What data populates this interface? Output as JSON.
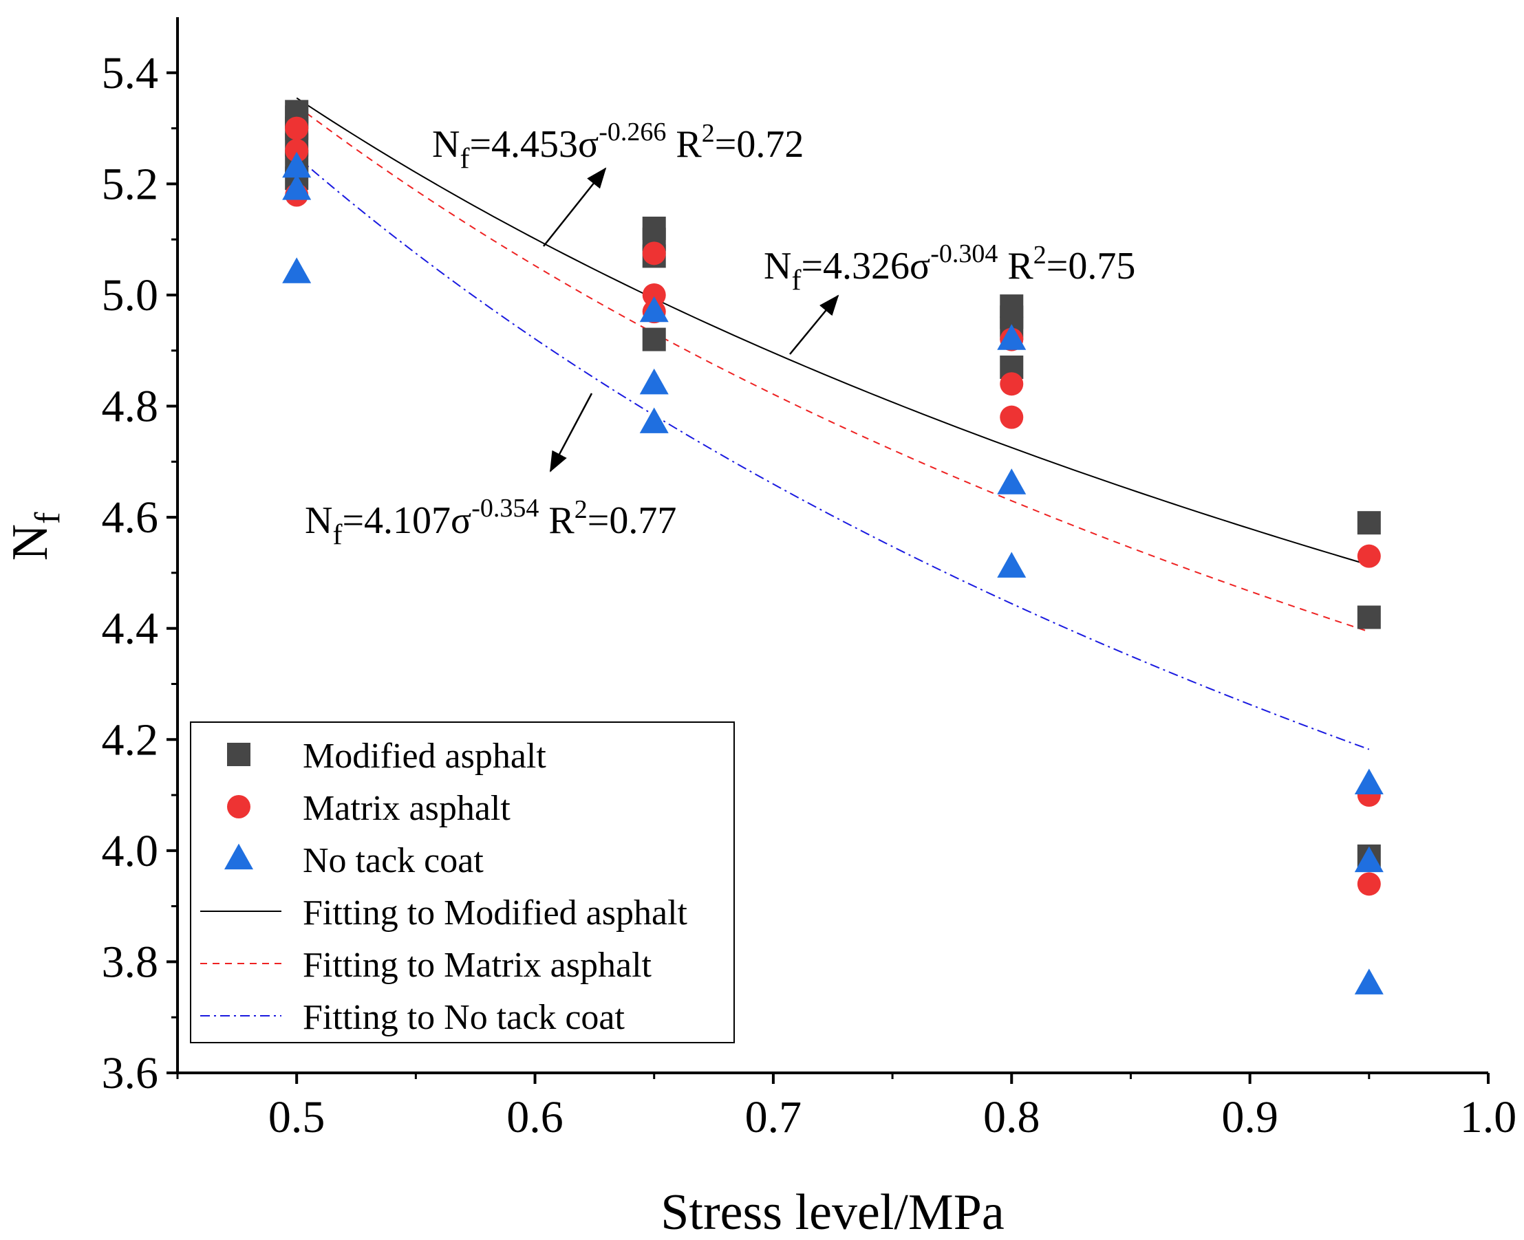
{
  "chart_data": {
    "type": "scatter",
    "xlabel": "Stress level/MPa",
    "ylabel": {
      "main": "N",
      "sub": "f"
    },
    "xlim": [
      0.45,
      1.0
    ],
    "ylim": [
      3.6,
      5.5
    ],
    "x_ticks": [
      0.5,
      0.6,
      0.7,
      0.8,
      0.9,
      1.0
    ],
    "x_tick_labels": [
      "0.5",
      "0.6",
      "0.7",
      "0.8",
      "0.9",
      "1.0"
    ],
    "y_ticks": [
      3.6,
      3.8,
      4.0,
      4.2,
      4.4,
      4.6,
      4.8,
      5.0,
      5.2,
      5.4
    ],
    "y_tick_labels": [
      "3.6",
      "3.8",
      "4.0",
      "4.2",
      "4.4",
      "4.6",
      "4.8",
      "5.0",
      "5.2",
      "5.4"
    ],
    "legend_position": "bottom-left",
    "series": [
      {
        "name": "Modified asphalt",
        "marker": "square",
        "color": "#464646",
        "points": [
          [
            0.5,
            5.33
          ],
          [
            0.5,
            5.32
          ],
          [
            0.5,
            5.3
          ],
          [
            0.5,
            5.27
          ],
          [
            0.5,
            5.24
          ],
          [
            0.5,
            5.21
          ],
          [
            0.65,
            5.12
          ],
          [
            0.65,
            5.1
          ],
          [
            0.65,
            5.07
          ],
          [
            0.65,
            4.92
          ],
          [
            0.8,
            4.98
          ],
          [
            0.8,
            4.96
          ],
          [
            0.8,
            4.94
          ],
          [
            0.8,
            4.87
          ],
          [
            0.95,
            4.59
          ],
          [
            0.95,
            4.42
          ],
          [
            0.95,
            3.99
          ]
        ]
      },
      {
        "name": "Matrix asphalt",
        "marker": "circle",
        "color": "#ee3333",
        "points": [
          [
            0.5,
            5.3
          ],
          [
            0.5,
            5.26
          ],
          [
            0.5,
            5.18
          ],
          [
            0.65,
            5.075
          ],
          [
            0.65,
            5.0
          ],
          [
            0.65,
            4.97
          ],
          [
            0.8,
            4.92
          ],
          [
            0.8,
            4.84
          ],
          [
            0.8,
            4.78
          ],
          [
            0.95,
            4.53
          ],
          [
            0.95,
            4.1
          ],
          [
            0.95,
            3.94
          ]
        ]
      },
      {
        "name": "No tack coat",
        "marker": "triangle",
        "color": "#1f6fe0",
        "points": [
          [
            0.5,
            5.23
          ],
          [
            0.5,
            5.19
          ],
          [
            0.5,
            5.04
          ],
          [
            0.65,
            4.97
          ],
          [
            0.65,
            4.84
          ],
          [
            0.65,
            4.77
          ],
          [
            0.8,
            4.92
          ],
          [
            0.8,
            4.66
          ],
          [
            0.8,
            4.51
          ],
          [
            0.95,
            4.12
          ],
          [
            0.95,
            3.98
          ],
          [
            0.95,
            3.76
          ]
        ]
      }
    ],
    "fits": [
      {
        "name": "Fitting to Modified asphalt",
        "a": 4.453,
        "b": -0.266,
        "r2": 0.72,
        "color": "#000000",
        "style": "solid",
        "x_range": [
          0.5,
          0.95
        ],
        "label": {
          "prefix": "N",
          "sub": "f",
          "coef": "=4.453σ",
          "exp": "-0.266",
          "r": " R",
          "r_exp": "2",
          "r_val": "=0.72"
        }
      },
      {
        "name": "Fitting to Matrix asphalt",
        "a": 4.326,
        "b": -0.304,
        "r2": 0.75,
        "color": "#ee2222",
        "style": "dash",
        "x_range": [
          0.5,
          0.95
        ],
        "label": {
          "prefix": "N",
          "sub": "f",
          "coef": "=4.326σ",
          "exp": "-0.304",
          "r": " R",
          "r_exp": "2",
          "r_val": "=0.75"
        }
      },
      {
        "name": "Fitting to No tack coat",
        "a": 4.107,
        "b": -0.354,
        "r2": 0.77,
        "color": "#1a1ae0",
        "style": "dashdot",
        "x_range": [
          0.5,
          0.95
        ],
        "label": {
          "prefix": "N",
          "sub": "f",
          "coef": "=4.107σ",
          "exp": "-0.354",
          "r": " R",
          "r_exp": "2",
          "r_val": "=0.77"
        }
      }
    ],
    "legend": [
      "Modified asphalt",
      "Matrix asphalt",
      "No tack coat",
      "Fitting to Modified asphalt",
      "Fitting to Matrix asphalt",
      "Fitting to No tack coat"
    ]
  }
}
